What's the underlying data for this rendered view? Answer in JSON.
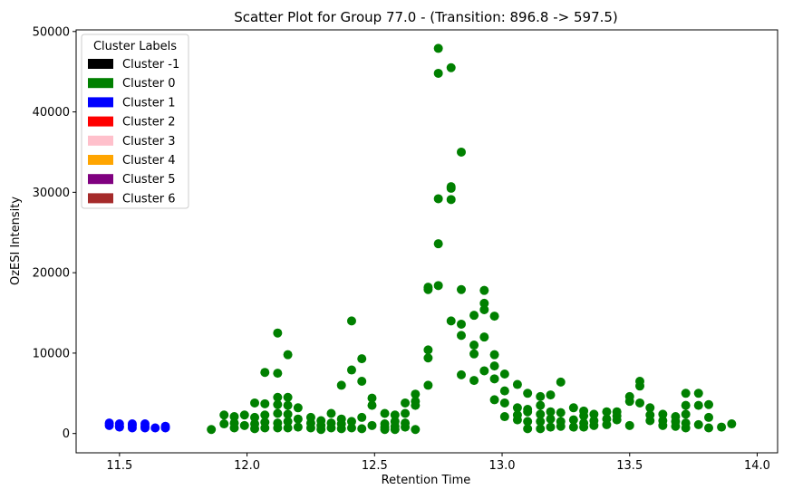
{
  "chart_data": {
    "type": "scatter",
    "title": "Scatter Plot for Group 77.0 -  (Transition: 896.8 -> 597.5)",
    "xlabel": "Retention Time",
    "ylabel": "OzESI Intensity",
    "xlim": [
      11.33,
      14.08
    ],
    "ylim": [
      -2400,
      50200
    ],
    "x_ticks": [
      11.5,
      12.0,
      12.5,
      13.0,
      13.5,
      14.0
    ],
    "x_tick_labels": [
      "11.5",
      "12.0",
      "12.5",
      "13.0",
      "13.5",
      "14.0"
    ],
    "y_ticks": [
      0,
      10000,
      20000,
      30000,
      40000,
      50000
    ],
    "y_tick_labels": [
      "0",
      "10000",
      "20000",
      "30000",
      "40000",
      "50000"
    ],
    "grid": false,
    "legend": {
      "title": "Cluster Labels",
      "position": "top-left",
      "entries": [
        {
          "label": "Cluster -1",
          "color": "#000000"
        },
        {
          "label": "Cluster 0",
          "color": "#008000"
        },
        {
          "label": "Cluster 1",
          "color": "#0000ff"
        },
        {
          "label": "Cluster 2",
          "color": "#ff0000"
        },
        {
          "label": "Cluster 3",
          "color": "#ffc0cb"
        },
        {
          "label": "Cluster 4",
          "color": "#ffa500"
        },
        {
          "label": "Cluster 5",
          "color": "#800080"
        },
        {
          "label": "Cluster 6",
          "color": "#a52a2a"
        }
      ]
    },
    "series": [
      {
        "name": "Cluster 1",
        "color": "#0000ff",
        "points": [
          [
            11.46,
            1300
          ],
          [
            11.46,
            1000
          ],
          [
            11.5,
            1200
          ],
          [
            11.5,
            900
          ],
          [
            11.5,
            800
          ],
          [
            11.55,
            1200
          ],
          [
            11.55,
            1000
          ],
          [
            11.55,
            700
          ],
          [
            11.6,
            1200
          ],
          [
            11.6,
            900
          ],
          [
            11.6,
            700
          ],
          [
            11.64,
            700
          ],
          [
            11.68,
            900
          ],
          [
            11.68,
            700
          ]
        ]
      },
      {
        "name": "Cluster 0",
        "color": "#008000",
        "points": [
          [
            11.86,
            500
          ],
          [
            11.91,
            1200
          ],
          [
            11.91,
            2300
          ],
          [
            11.95,
            700
          ],
          [
            11.95,
            1300
          ],
          [
            11.95,
            2100
          ],
          [
            11.99,
            1000
          ],
          [
            11.99,
            2300
          ],
          [
            12.03,
            600
          ],
          [
            12.03,
            1200
          ],
          [
            12.03,
            2000
          ],
          [
            12.03,
            3800
          ],
          [
            12.07,
            700
          ],
          [
            12.07,
            1400
          ],
          [
            12.07,
            2300
          ],
          [
            12.07,
            3700
          ],
          [
            12.07,
            7600
          ],
          [
            12.12,
            700
          ],
          [
            12.12,
            1300
          ],
          [
            12.12,
            2500
          ],
          [
            12.12,
            3600
          ],
          [
            12.12,
            4500
          ],
          [
            12.12,
            7500
          ],
          [
            12.12,
            12500
          ],
          [
            12.16,
            700
          ],
          [
            12.16,
            1500
          ],
          [
            12.16,
            2400
          ],
          [
            12.16,
            3500
          ],
          [
            12.16,
            4500
          ],
          [
            12.16,
            9800
          ],
          [
            12.2,
            800
          ],
          [
            12.2,
            1800
          ],
          [
            12.2,
            3200
          ],
          [
            12.25,
            700
          ],
          [
            12.25,
            1300
          ],
          [
            12.25,
            2000
          ],
          [
            12.29,
            500
          ],
          [
            12.29,
            1000
          ],
          [
            12.29,
            1600
          ],
          [
            12.33,
            700
          ],
          [
            12.33,
            1300
          ],
          [
            12.33,
            2500
          ],
          [
            12.37,
            600
          ],
          [
            12.37,
            1200
          ],
          [
            12.37,
            1800
          ],
          [
            12.37,
            6000
          ],
          [
            12.41,
            700
          ],
          [
            12.41,
            1500
          ],
          [
            12.41,
            7900
          ],
          [
            12.41,
            14000
          ],
          [
            12.45,
            600
          ],
          [
            12.45,
            2000
          ],
          [
            12.45,
            6500
          ],
          [
            12.45,
            9300
          ],
          [
            12.49,
            1000
          ],
          [
            12.49,
            3500
          ],
          [
            12.49,
            4400
          ],
          [
            12.54,
            500
          ],
          [
            12.54,
            800
          ],
          [
            12.54,
            1200
          ],
          [
            12.54,
            2500
          ],
          [
            12.58,
            500
          ],
          [
            12.58,
            900
          ],
          [
            12.58,
            1500
          ],
          [
            12.58,
            2300
          ],
          [
            12.62,
            800
          ],
          [
            12.62,
            1300
          ],
          [
            12.62,
            2500
          ],
          [
            12.62,
            3800
          ],
          [
            12.66,
            500
          ],
          [
            12.66,
            3500
          ],
          [
            12.66,
            4000
          ],
          [
            12.66,
            4900
          ],
          [
            12.71,
            6000
          ],
          [
            12.71,
            9400
          ],
          [
            12.71,
            10400
          ],
          [
            12.71,
            17900
          ],
          [
            12.71,
            18200
          ],
          [
            12.75,
            18400
          ],
          [
            12.75,
            23600
          ],
          [
            12.75,
            29200
          ],
          [
            12.75,
            44800
          ],
          [
            12.75,
            47900
          ],
          [
            12.8,
            14000
          ],
          [
            12.8,
            29100
          ],
          [
            12.8,
            30700
          ],
          [
            12.8,
            30500
          ],
          [
            12.8,
            45500
          ],
          [
            12.84,
            7300
          ],
          [
            12.84,
            12200
          ],
          [
            12.84,
            13600
          ],
          [
            12.84,
            17900
          ],
          [
            12.84,
            35000
          ],
          [
            12.89,
            6600
          ],
          [
            12.89,
            9900
          ],
          [
            12.89,
            11000
          ],
          [
            12.89,
            14700
          ],
          [
            12.93,
            7800
          ],
          [
            12.93,
            12000
          ],
          [
            12.93,
            15400
          ],
          [
            12.93,
            16200
          ],
          [
            12.93,
            17800
          ],
          [
            12.97,
            4200
          ],
          [
            12.97,
            6800
          ],
          [
            12.97,
            8400
          ],
          [
            12.97,
            9800
          ],
          [
            12.97,
            14600
          ],
          [
            13.01,
            2100
          ],
          [
            13.01,
            3800
          ],
          [
            13.01,
            5300
          ],
          [
            13.01,
            7400
          ],
          [
            13.06,
            1700
          ],
          [
            13.06,
            2300
          ],
          [
            13.06,
            3200
          ],
          [
            13.06,
            6100
          ],
          [
            13.1,
            600
          ],
          [
            13.1,
            1500
          ],
          [
            13.1,
            2700
          ],
          [
            13.1,
            3000
          ],
          [
            13.1,
            5000
          ],
          [
            13.15,
            600
          ],
          [
            13.15,
            1500
          ],
          [
            13.15,
            2400
          ],
          [
            13.15,
            3500
          ],
          [
            13.15,
            4600
          ],
          [
            13.19,
            800
          ],
          [
            13.19,
            1800
          ],
          [
            13.19,
            2700
          ],
          [
            13.19,
            4800
          ],
          [
            13.23,
            900
          ],
          [
            13.23,
            1500
          ],
          [
            13.23,
            2600
          ],
          [
            13.23,
            6400
          ],
          [
            13.28,
            800
          ],
          [
            13.28,
            1700
          ],
          [
            13.28,
            3200
          ],
          [
            13.32,
            800
          ],
          [
            13.32,
            1300
          ],
          [
            13.32,
            2200
          ],
          [
            13.32,
            2800
          ],
          [
            13.36,
            1000
          ],
          [
            13.36,
            1600
          ],
          [
            13.36,
            2400
          ],
          [
            13.41,
            1100
          ],
          [
            13.41,
            1800
          ],
          [
            13.41,
            2700
          ],
          [
            13.45,
            1700
          ],
          [
            13.45,
            2200
          ],
          [
            13.45,
            2700
          ],
          [
            13.5,
            1000
          ],
          [
            13.5,
            4000
          ],
          [
            13.5,
            4600
          ],
          [
            13.54,
            3800
          ],
          [
            13.54,
            5900
          ],
          [
            13.54,
            6500
          ],
          [
            13.58,
            1600
          ],
          [
            13.58,
            2300
          ],
          [
            13.58,
            3200
          ],
          [
            13.63,
            1000
          ],
          [
            13.63,
            1600
          ],
          [
            13.63,
            2400
          ],
          [
            13.68,
            900
          ],
          [
            13.68,
            1500
          ],
          [
            13.68,
            2100
          ],
          [
            13.72,
            700
          ],
          [
            13.72,
            1300
          ],
          [
            13.72,
            2400
          ],
          [
            13.72,
            3500
          ],
          [
            13.72,
            5000
          ],
          [
            13.77,
            1100
          ],
          [
            13.77,
            3500
          ],
          [
            13.77,
            5000
          ],
          [
            13.81,
            700
          ],
          [
            13.81,
            2000
          ],
          [
            13.81,
            3600
          ],
          [
            13.86,
            800
          ],
          [
            13.9,
            1200
          ]
        ]
      }
    ]
  }
}
